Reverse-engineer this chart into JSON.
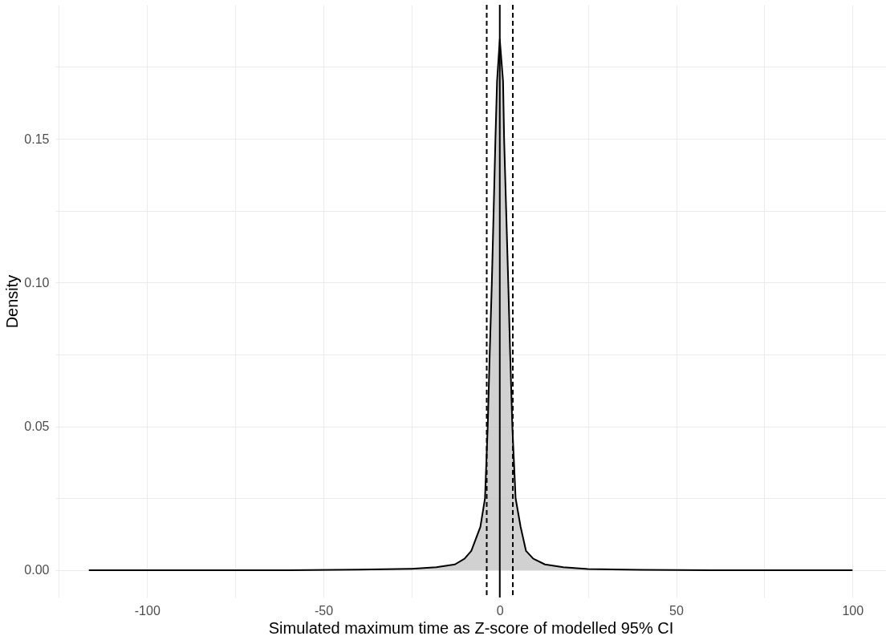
{
  "chart_data": {
    "type": "area",
    "xlabel": "Simulated maximum time as Z-score of modelled 95% CI",
    "ylabel": "Density",
    "x": [
      -116.5,
      -60,
      -40,
      -25,
      -18,
      -12.7,
      -10,
      -8.07,
      -5.5,
      -4.19,
      -3.42,
      -2.86,
      -2.25,
      -1.23,
      -0.77,
      0,
      0.93,
      1.23,
      2.4,
      2.95,
      3.56,
      4.49,
      5.9,
      7.44,
      9.5,
      12.8,
      18,
      25,
      40,
      60,
      100
    ],
    "series": [
      {
        "color": "#bebebe",
        "values": [
          0,
          0,
          0.0002,
          0.0005,
          0.001,
          0.002,
          0.004,
          0.0067,
          0.0151,
          0.025,
          0.05,
          0.075,
          0.1,
          0.15,
          0.17,
          0.1846,
          0.17,
          0.15,
          0.1,
          0.075,
          0.05,
          0.025,
          0.0151,
          0.0067,
          0.004,
          0.002,
          0.001,
          0.0004,
          0.0001,
          0,
          0
        ]
      }
    ],
    "xlim": [
      -126,
      109.5
    ],
    "ylim": [
      -0.0095,
      0.1966
    ],
    "xticks": [
      {
        "value": -125,
        "label": null
      },
      -100,
      {
        "value": -75,
        "label": null
      },
      -50,
      {
        "value": -25,
        "label": null
      },
      0,
      {
        "value": 25,
        "label": null
      },
      50,
      {
        "value": 75,
        "label": null
      },
      100
    ],
    "yticks": [
      {
        "value": 0,
        "label": "0.00"
      },
      {
        "value": 0.025,
        "label": null
      },
      {
        "value": 0.05,
        "label": "0.05"
      },
      {
        "value": 0.075,
        "label": null
      },
      {
        "value": 0.1,
        "label": "0.10"
      },
      {
        "value": 0.125,
        "label": null
      },
      {
        "value": 0.15,
        "label": "0.15"
      },
      {
        "value": 0.175,
        "label": null
      }
    ],
    "ref_lines": [
      {
        "axis": "x",
        "value": 0,
        "line_style": "solid",
        "color": "#000000"
      },
      {
        "axis": "x",
        "value": -3.7,
        "line_style": "dashed",
        "color": "#000000"
      },
      {
        "axis": "x",
        "value": 3.7,
        "line_style": "dashed",
        "color": "#000000"
      }
    ],
    "grid": true
  }
}
